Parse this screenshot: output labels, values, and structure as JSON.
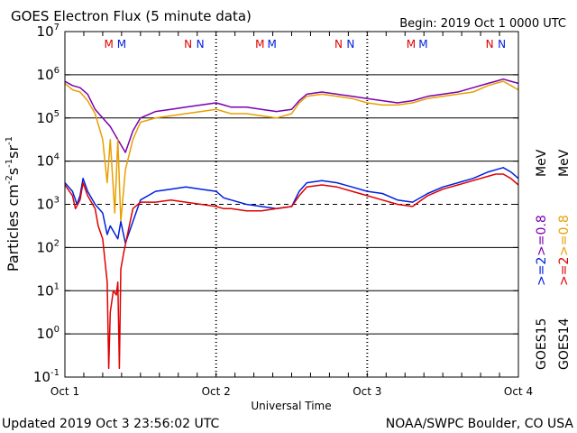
{
  "header": {
    "title": "GOES Electron Flux (5 minute data)",
    "begin": "Begin: 2019 Oct 1 0000 UTC"
  },
  "footer": {
    "updated": "Updated 2019 Oct  3 23:56:02 UTC",
    "credit": "NOAA/SWPC Boulder, CO USA"
  },
  "chart_data": {
    "type": "line",
    "xlabel": "Universal Time",
    "ylabel_parts": [
      "Particles cm",
      "-2",
      "s",
      "-1",
      "sr",
      "-1"
    ],
    "x_range_days": [
      0,
      3
    ],
    "x_ticks": [
      {
        "day": 0,
        "label": "Oct 1"
      },
      {
        "day": 1,
        "label": "Oct 2"
      },
      {
        "day": 2,
        "label": "Oct 3"
      },
      {
        "day": 3,
        "label": "Oct 4"
      }
    ],
    "y_scale": "log",
    "y_range_exp": [
      -1,
      7
    ],
    "y_tick_exps": [
      -1,
      0,
      1,
      2,
      3,
      4,
      5,
      6,
      7
    ],
    "y_tick_base": "10",
    "gridlines_exp": [
      0,
      1,
      2,
      4,
      5,
      6
    ],
    "threshold_exp": 3,
    "markers": [
      {
        "day": 0.29,
        "label": "M",
        "color": "#e00000"
      },
      {
        "day": 0.375,
        "label": "M",
        "color": "#0020e0"
      },
      {
        "day": 0.815,
        "label": "N",
        "color": "#e00000"
      },
      {
        "day": 0.895,
        "label": "N",
        "color": "#0020e0"
      },
      {
        "day": 1.29,
        "label": "M",
        "color": "#e00000"
      },
      {
        "day": 1.37,
        "label": "M",
        "color": "#0020e0"
      },
      {
        "day": 1.81,
        "label": "N",
        "color": "#e00000"
      },
      {
        "day": 1.89,
        "label": "N",
        "color": "#0020e0"
      },
      {
        "day": 2.29,
        "label": "M",
        "color": "#e00000"
      },
      {
        "day": 2.37,
        "label": "M",
        "color": "#0020e0"
      },
      {
        "day": 2.81,
        "label": "N",
        "color": "#e00000"
      },
      {
        "day": 2.89,
        "label": "N",
        "color": "#0020e0"
      }
    ],
    "legend": {
      "col1_energy": [
        {
          "text": ">=2",
          "color": "#0020e0"
        },
        {
          "text": ">=0.8",
          "color": "#7a00b0"
        }
      ],
      "col2_energy": [
        {
          "text": ">=2",
          "color": "#e00000"
        },
        {
          "text": ">=0.8",
          "color": "#e8a000"
        }
      ],
      "unit": "MeV",
      "col1_satellite": "GOES15",
      "col2_satellite": "GOES14"
    },
    "series": [
      {
        "color": "#7a00b0",
        "points": [
          [
            0.0,
            5.85
          ],
          [
            0.05,
            5.75
          ],
          [
            0.1,
            5.7
          ],
          [
            0.15,
            5.55
          ],
          [
            0.2,
            5.2
          ],
          [
            0.25,
            5.0
          ],
          [
            0.3,
            4.8
          ],
          [
            0.35,
            4.5
          ],
          [
            0.4,
            4.2
          ],
          [
            0.45,
            4.7
          ],
          [
            0.5,
            5.0
          ],
          [
            0.6,
            5.15
          ],
          [
            0.7,
            5.2
          ],
          [
            0.8,
            5.25
          ],
          [
            0.9,
            5.3
          ],
          [
            1.0,
            5.35
          ],
          [
            1.05,
            5.3
          ],
          [
            1.1,
            5.25
          ],
          [
            1.2,
            5.25
          ],
          [
            1.3,
            5.2
          ],
          [
            1.4,
            5.15
          ],
          [
            1.5,
            5.2
          ],
          [
            1.55,
            5.4
          ],
          [
            1.6,
            5.55
          ],
          [
            1.7,
            5.6
          ],
          [
            1.8,
            5.55
          ],
          [
            1.9,
            5.5
          ],
          [
            2.0,
            5.45
          ],
          [
            2.1,
            5.4
          ],
          [
            2.2,
            5.35
          ],
          [
            2.3,
            5.4
          ],
          [
            2.4,
            5.5
          ],
          [
            2.5,
            5.55
          ],
          [
            2.6,
            5.6
          ],
          [
            2.7,
            5.7
          ],
          [
            2.8,
            5.8
          ],
          [
            2.85,
            5.85
          ],
          [
            2.9,
            5.9
          ],
          [
            2.95,
            5.85
          ],
          [
            3.0,
            5.8
          ]
        ]
      },
      {
        "color": "#e8a000",
        "points": [
          [
            0.0,
            5.8
          ],
          [
            0.05,
            5.65
          ],
          [
            0.1,
            5.6
          ],
          [
            0.15,
            5.4
          ],
          [
            0.2,
            5.1
          ],
          [
            0.25,
            4.5
          ],
          [
            0.28,
            3.5
          ],
          [
            0.3,
            4.5
          ],
          [
            0.33,
            2.8
          ],
          [
            0.35,
            4.5
          ],
          [
            0.37,
            2.6
          ],
          [
            0.4,
            3.8
          ],
          [
            0.45,
            4.5
          ],
          [
            0.5,
            4.9
          ],
          [
            0.6,
            5.0
          ],
          [
            0.7,
            5.05
          ],
          [
            0.8,
            5.1
          ],
          [
            0.9,
            5.15
          ],
          [
            1.0,
            5.2
          ],
          [
            1.05,
            5.15
          ],
          [
            1.1,
            5.1
          ],
          [
            1.2,
            5.1
          ],
          [
            1.3,
            5.05
          ],
          [
            1.4,
            5.0
          ],
          [
            1.5,
            5.1
          ],
          [
            1.55,
            5.35
          ],
          [
            1.6,
            5.5
          ],
          [
            1.7,
            5.55
          ],
          [
            1.8,
            5.5
          ],
          [
            1.9,
            5.45
          ],
          [
            2.0,
            5.35
          ],
          [
            2.1,
            5.3
          ],
          [
            2.2,
            5.3
          ],
          [
            2.3,
            5.35
          ],
          [
            2.4,
            5.45
          ],
          [
            2.5,
            5.5
          ],
          [
            2.6,
            5.55
          ],
          [
            2.7,
            5.6
          ],
          [
            2.8,
            5.75
          ],
          [
            2.85,
            5.8
          ],
          [
            2.9,
            5.85
          ],
          [
            2.95,
            5.75
          ],
          [
            3.0,
            5.65
          ]
        ]
      },
      {
        "color": "#0020e0",
        "points": [
          [
            0.0,
            3.5
          ],
          [
            0.05,
            3.3
          ],
          [
            0.08,
            3.0
          ],
          [
            0.1,
            3.2
          ],
          [
            0.12,
            3.6
          ],
          [
            0.15,
            3.3
          ],
          [
            0.2,
            3.0
          ],
          [
            0.25,
            2.8
          ],
          [
            0.28,
            2.3
          ],
          [
            0.3,
            2.5
          ],
          [
            0.35,
            2.2
          ],
          [
            0.37,
            2.6
          ],
          [
            0.4,
            2.1
          ],
          [
            0.45,
            2.6
          ],
          [
            0.5,
            3.1
          ],
          [
            0.6,
            3.3
          ],
          [
            0.7,
            3.35
          ],
          [
            0.8,
            3.4
          ],
          [
            0.9,
            3.35
          ],
          [
            1.0,
            3.3
          ],
          [
            1.05,
            3.15
          ],
          [
            1.1,
            3.1
          ],
          [
            1.2,
            3.0
          ],
          [
            1.3,
            2.95
          ],
          [
            1.4,
            2.9
          ],
          [
            1.5,
            2.95
          ],
          [
            1.55,
            3.3
          ],
          [
            1.6,
            3.5
          ],
          [
            1.7,
            3.55
          ],
          [
            1.8,
            3.5
          ],
          [
            1.9,
            3.4
          ],
          [
            2.0,
            3.3
          ],
          [
            2.1,
            3.25
          ],
          [
            2.2,
            3.1
          ],
          [
            2.3,
            3.05
          ],
          [
            2.4,
            3.25
          ],
          [
            2.5,
            3.4
          ],
          [
            2.6,
            3.5
          ],
          [
            2.7,
            3.6
          ],
          [
            2.8,
            3.75
          ],
          [
            2.85,
            3.8
          ],
          [
            2.9,
            3.85
          ],
          [
            2.95,
            3.75
          ],
          [
            3.0,
            3.6
          ]
        ]
      },
      {
        "color": "#e00000",
        "points": [
          [
            0.0,
            3.45
          ],
          [
            0.05,
            3.2
          ],
          [
            0.07,
            2.9
          ],
          [
            0.1,
            3.1
          ],
          [
            0.12,
            3.5
          ],
          [
            0.15,
            3.2
          ],
          [
            0.2,
            2.9
          ],
          [
            0.22,
            2.5
          ],
          [
            0.25,
            2.2
          ],
          [
            0.28,
            1.2
          ],
          [
            0.29,
            -0.8
          ],
          [
            0.3,
            0.5
          ],
          [
            0.32,
            1.0
          ],
          [
            0.34,
            0.9
          ],
          [
            0.35,
            1.2
          ],
          [
            0.36,
            -0.8
          ],
          [
            0.37,
            1.5
          ],
          [
            0.39,
            1.9
          ],
          [
            0.42,
            2.4
          ],
          [
            0.45,
            2.9
          ],
          [
            0.5,
            3.05
          ],
          [
            0.6,
            3.05
          ],
          [
            0.7,
            3.1
          ],
          [
            0.8,
            3.05
          ],
          [
            0.9,
            3.0
          ],
          [
            1.0,
            2.95
          ],
          [
            1.05,
            2.9
          ],
          [
            1.1,
            2.9
          ],
          [
            1.2,
            2.85
          ],
          [
            1.3,
            2.85
          ],
          [
            1.4,
            2.9
          ],
          [
            1.5,
            2.95
          ],
          [
            1.55,
            3.2
          ],
          [
            1.6,
            3.4
          ],
          [
            1.7,
            3.45
          ],
          [
            1.8,
            3.4
          ],
          [
            1.9,
            3.3
          ],
          [
            2.0,
            3.2
          ],
          [
            2.1,
            3.1
          ],
          [
            2.2,
            3.0
          ],
          [
            2.3,
            2.95
          ],
          [
            2.4,
            3.2
          ],
          [
            2.5,
            3.35
          ],
          [
            2.6,
            3.45
          ],
          [
            2.7,
            3.55
          ],
          [
            2.8,
            3.65
          ],
          [
            2.85,
            3.7
          ],
          [
            2.9,
            3.7
          ],
          [
            2.95,
            3.6
          ],
          [
            3.0,
            3.45
          ]
        ]
      }
    ]
  }
}
